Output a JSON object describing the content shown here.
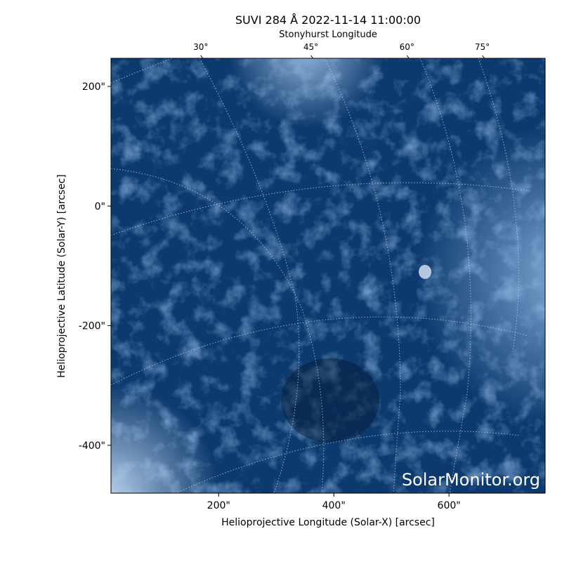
{
  "chart_data": {
    "type": "image",
    "title": "SUVI 284 Å 2022-11-14 11:00:00",
    "x2_label": "Stonyhurst Longitude",
    "x_label": "Helioprojective Longitude (Solar-X) [arcsec]",
    "y_label": "Helioprojective Latitude (Solar-Y) [arcsec]",
    "watermark": "SolarMonitor.org",
    "xlim": [
      13,
      767
    ],
    "ylim": [
      -480,
      247
    ],
    "xticks": [
      {
        "value": 200,
        "label": "200\""
      },
      {
        "value": 400,
        "label": "400\""
      },
      {
        "value": 600,
        "label": "600\""
      }
    ],
    "yticks": [
      {
        "value": 200,
        "label": "200\""
      },
      {
        "value": 0,
        "label": "0\""
      },
      {
        "value": -200,
        "label": "-200\""
      },
      {
        "value": -400,
        "label": "-400\""
      }
    ],
    "x2ticks": [
      {
        "value": 30,
        "label": "30°"
      },
      {
        "value": 45,
        "label": "45°"
      },
      {
        "value": 60,
        "label": "60°"
      },
      {
        "value": 75,
        "label": "75°"
      }
    ],
    "color": "#0d3a6e"
  }
}
